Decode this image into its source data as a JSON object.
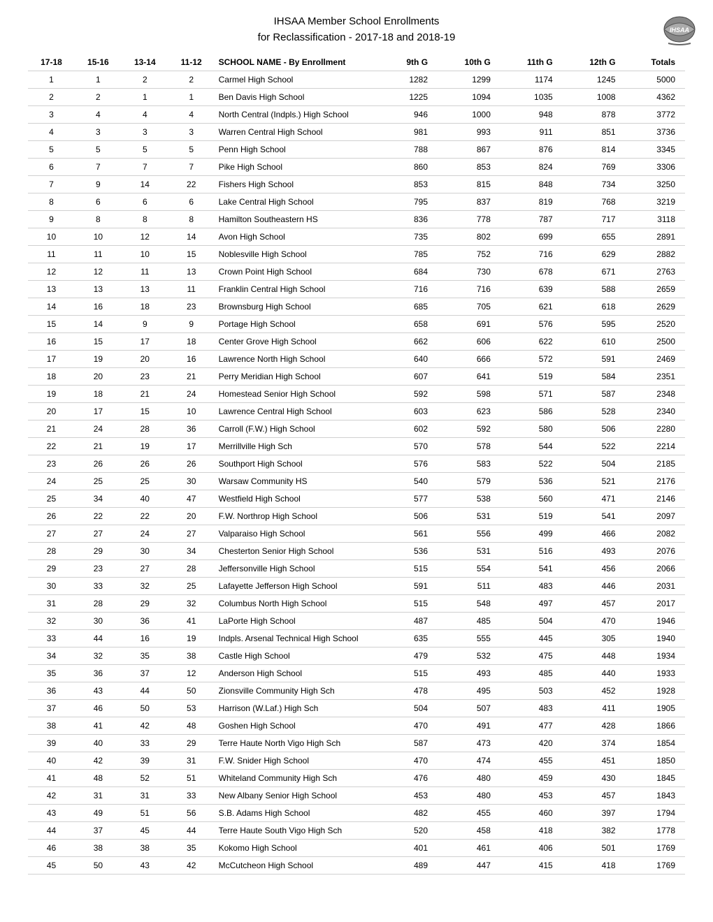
{
  "title_line1": "IHSAA Member School Enrollments",
  "title_line2": "for Reclassification - 2017-18 and 2018-19",
  "columns": [
    "17-18",
    "15-16",
    "13-14",
    "11-12",
    "SCHOOL NAME - By Enrollment",
    "9th G",
    "10th G",
    "11th G",
    "12th G",
    "Totals"
  ],
  "rows": [
    [
      "1",
      "1",
      "2",
      "2",
      "Carmel High School",
      "1282",
      "1299",
      "1174",
      "1245",
      "5000"
    ],
    [
      "2",
      "2",
      "1",
      "1",
      "Ben Davis High School",
      "1225",
      "1094",
      "1035",
      "1008",
      "4362"
    ],
    [
      "3",
      "4",
      "4",
      "4",
      "North Central (Indpls.) High School",
      "946",
      "1000",
      "948",
      "878",
      "3772"
    ],
    [
      "4",
      "3",
      "3",
      "3",
      "Warren Central High School",
      "981",
      "993",
      "911",
      "851",
      "3736"
    ],
    [
      "5",
      "5",
      "5",
      "5",
      "Penn High School",
      "788",
      "867",
      "876",
      "814",
      "3345"
    ],
    [
      "6",
      "7",
      "7",
      "7",
      "Pike High School",
      "860",
      "853",
      "824",
      "769",
      "3306"
    ],
    [
      "7",
      "9",
      "14",
      "22",
      "Fishers High School",
      "853",
      "815",
      "848",
      "734",
      "3250"
    ],
    [
      "8",
      "6",
      "6",
      "6",
      "Lake Central High School",
      "795",
      "837",
      "819",
      "768",
      "3219"
    ],
    [
      "9",
      "8",
      "8",
      "8",
      "Hamilton Southeastern HS",
      "836",
      "778",
      "787",
      "717",
      "3118"
    ],
    [
      "10",
      "10",
      "12",
      "14",
      "Avon High School",
      "735",
      "802",
      "699",
      "655",
      "2891"
    ],
    [
      "11",
      "11",
      "10",
      "15",
      "Noblesville High School",
      "785",
      "752",
      "716",
      "629",
      "2882"
    ],
    [
      "12",
      "12",
      "11",
      "13",
      "Crown Point High School",
      "684",
      "730",
      "678",
      "671",
      "2763"
    ],
    [
      "13",
      "13",
      "13",
      "11",
      "Franklin Central High School",
      "716",
      "716",
      "639",
      "588",
      "2659"
    ],
    [
      "14",
      "16",
      "18",
      "23",
      "Brownsburg High School",
      "685",
      "705",
      "621",
      "618",
      "2629"
    ],
    [
      "15",
      "14",
      "9",
      "9",
      "Portage High School",
      "658",
      "691",
      "576",
      "595",
      "2520"
    ],
    [
      "16",
      "15",
      "17",
      "18",
      "Center Grove High School",
      "662",
      "606",
      "622",
      "610",
      "2500"
    ],
    [
      "17",
      "19",
      "20",
      "16",
      "Lawrence North High School",
      "640",
      "666",
      "572",
      "591",
      "2469"
    ],
    [
      "18",
      "20",
      "23",
      "21",
      "Perry Meridian High School",
      "607",
      "641",
      "519",
      "584",
      "2351"
    ],
    [
      "19",
      "18",
      "21",
      "24",
      "Homestead Senior High School",
      "592",
      "598",
      "571",
      "587",
      "2348"
    ],
    [
      "20",
      "17",
      "15",
      "10",
      "Lawrence Central High School",
      "603",
      "623",
      "586",
      "528",
      "2340"
    ],
    [
      "21",
      "24",
      "28",
      "36",
      "Carroll (F.W.) High School",
      "602",
      "592",
      "580",
      "506",
      "2280"
    ],
    [
      "22",
      "21",
      "19",
      "17",
      "Merrillville High Sch",
      "570",
      "578",
      "544",
      "522",
      "2214"
    ],
    [
      "23",
      "26",
      "26",
      "26",
      "Southport High School",
      "576",
      "583",
      "522",
      "504",
      "2185"
    ],
    [
      "24",
      "25",
      "25",
      "30",
      "Warsaw Community HS",
      "540",
      "579",
      "536",
      "521",
      "2176"
    ],
    [
      "25",
      "34",
      "40",
      "47",
      "Westfield High School",
      "577",
      "538",
      "560",
      "471",
      "2146"
    ],
    [
      "26",
      "22",
      "22",
      "20",
      "F.W. Northrop High School",
      "506",
      "531",
      "519",
      "541",
      "2097"
    ],
    [
      "27",
      "27",
      "24",
      "27",
      "Valparaiso High School",
      "561",
      "556",
      "499",
      "466",
      "2082"
    ],
    [
      "28",
      "29",
      "30",
      "34",
      "Chesterton Senior High School",
      "536",
      "531",
      "516",
      "493",
      "2076"
    ],
    [
      "29",
      "23",
      "27",
      "28",
      "Jeffersonville High School",
      "515",
      "554",
      "541",
      "456",
      "2066"
    ],
    [
      "30",
      "33",
      "32",
      "25",
      "Lafayette Jefferson High School",
      "591",
      "511",
      "483",
      "446",
      "2031"
    ],
    [
      "31",
      "28",
      "29",
      "32",
      "Columbus North High School",
      "515",
      "548",
      "497",
      "457",
      "2017"
    ],
    [
      "32",
      "30",
      "36",
      "41",
      "LaPorte High School",
      "487",
      "485",
      "504",
      "470",
      "1946"
    ],
    [
      "33",
      "44",
      "16",
      "19",
      "Indpls. Arsenal Technical High School",
      "635",
      "555",
      "445",
      "305",
      "1940"
    ],
    [
      "34",
      "32",
      "35",
      "38",
      "Castle High School",
      "479",
      "532",
      "475",
      "448",
      "1934"
    ],
    [
      "35",
      "36",
      "37",
      "12",
      "Anderson High School",
      "515",
      "493",
      "485",
      "440",
      "1933"
    ],
    [
      "36",
      "43",
      "44",
      "50",
      "Zionsville Community High Sch",
      "478",
      "495",
      "503",
      "452",
      "1928"
    ],
    [
      "37",
      "46",
      "50",
      "53",
      "Harrison (W.Laf.) High Sch",
      "504",
      "507",
      "483",
      "411",
      "1905"
    ],
    [
      "38",
      "41",
      "42",
      "48",
      "Goshen High School",
      "470",
      "491",
      "477",
      "428",
      "1866"
    ],
    [
      "39",
      "40",
      "33",
      "29",
      "Terre Haute North Vigo High Sch",
      "587",
      "473",
      "420",
      "374",
      "1854"
    ],
    [
      "40",
      "42",
      "39",
      "31",
      "F.W. Snider High School",
      "470",
      "474",
      "455",
      "451",
      "1850"
    ],
    [
      "41",
      "48",
      "52",
      "51",
      "Whiteland Community High Sch",
      "476",
      "480",
      "459",
      "430",
      "1845"
    ],
    [
      "42",
      "31",
      "31",
      "33",
      "New Albany Senior High School",
      "453",
      "480",
      "453",
      "457",
      "1843"
    ],
    [
      "43",
      "49",
      "51",
      "56",
      "S.B. Adams High School",
      "482",
      "455",
      "460",
      "397",
      "1794"
    ],
    [
      "44",
      "37",
      "45",
      "44",
      "Terre Haute South Vigo High Sch",
      "520",
      "458",
      "418",
      "382",
      "1778"
    ],
    [
      "46",
      "38",
      "38",
      "35",
      "Kokomo High School",
      "401",
      "461",
      "406",
      "501",
      "1769"
    ],
    [
      "45",
      "50",
      "43",
      "42",
      "McCutcheon High School",
      "489",
      "447",
      "415",
      "418",
      "1769"
    ]
  ],
  "style": {
    "font_family": "Verdana, Geneva, sans-serif",
    "title_fontsize": 15,
    "table_fontsize": 12,
    "border_color": "#d0d0d0",
    "text_color": "#000000",
    "background": "#ffffff"
  }
}
